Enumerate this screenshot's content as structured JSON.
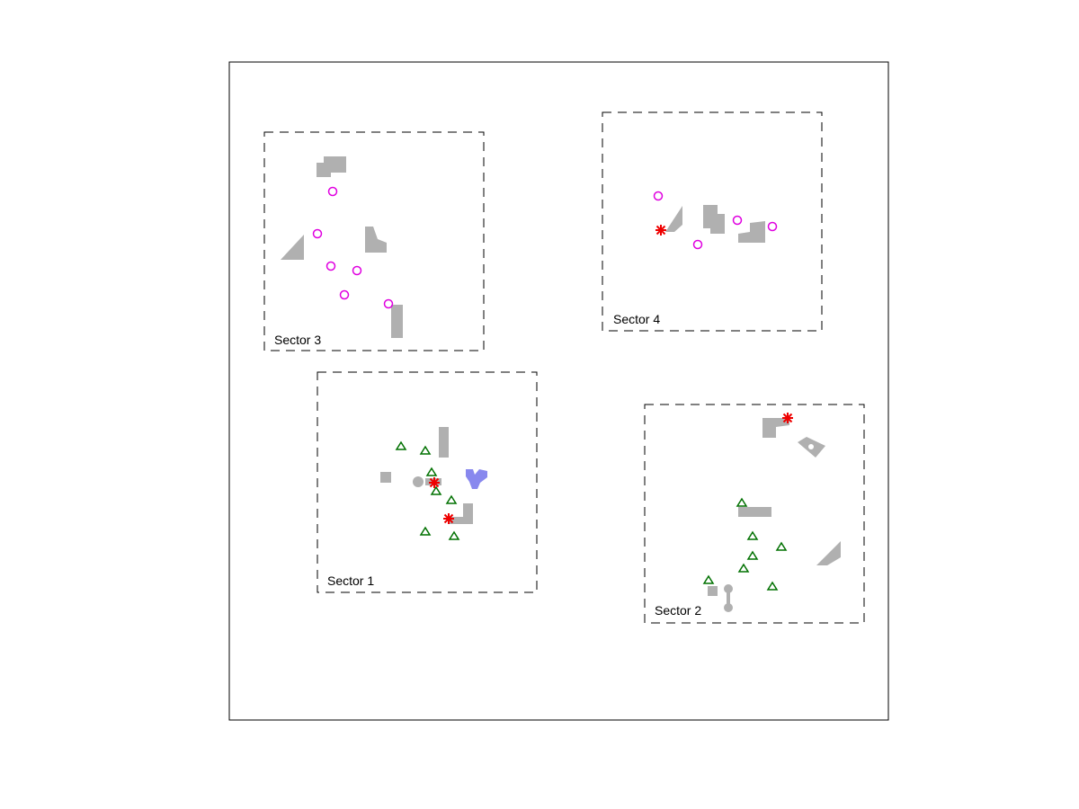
{
  "colors": {
    "obstacle": "#b0b0b0",
    "obstacle_highlight": "#8888ee",
    "circle_marker": "#e000e0",
    "triangle_marker": "#007000",
    "star_marker": "#ee0000"
  },
  "sectors": [
    {
      "id": "sector-1",
      "label": "Sector 1"
    },
    {
      "id": "sector-2",
      "label": "Sector 2"
    },
    {
      "id": "sector-3",
      "label": "Sector 3"
    },
    {
      "id": "sector-4",
      "label": "Sector 4"
    }
  ],
  "marker_types": [
    "circle",
    "triangle",
    "star"
  ]
}
